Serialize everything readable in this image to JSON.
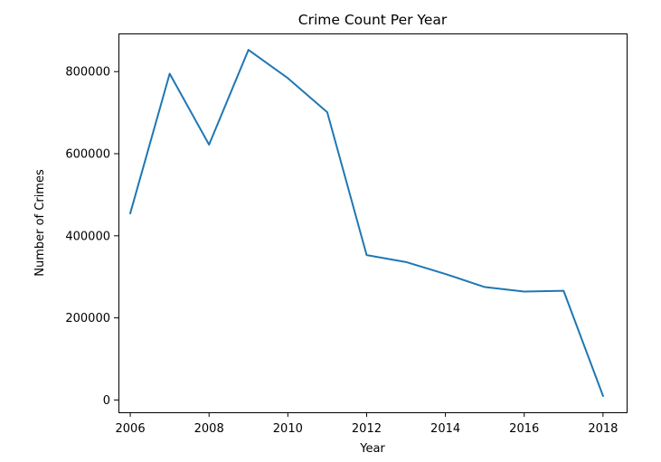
{
  "chart_data": {
    "type": "line",
    "title": "Crime Count Per Year",
    "xlabel": "Year",
    "ylabel": "Number of Crimes",
    "xlim": [
      2005.7,
      2018.6
    ],
    "ylim": [
      -30000,
      893000
    ],
    "xticks": [
      2006,
      2008,
      2010,
      2012,
      2014,
      2016,
      2018
    ],
    "yticks": [
      0,
      200000,
      400000,
      600000,
      800000
    ],
    "grid": false,
    "series": [
      {
        "color": "#1f77b4",
        "x": [
          2006,
          2007,
          2008,
          2009,
          2010,
          2011,
          2012,
          2013,
          2014,
          2015,
          2016,
          2017,
          2018
        ],
        "y": [
          455000,
          795000,
          622000,
          853000,
          784000,
          701000,
          353000,
          336000,
          307000,
          275000,
          264000,
          266000,
          10000
        ]
      }
    ]
  }
}
